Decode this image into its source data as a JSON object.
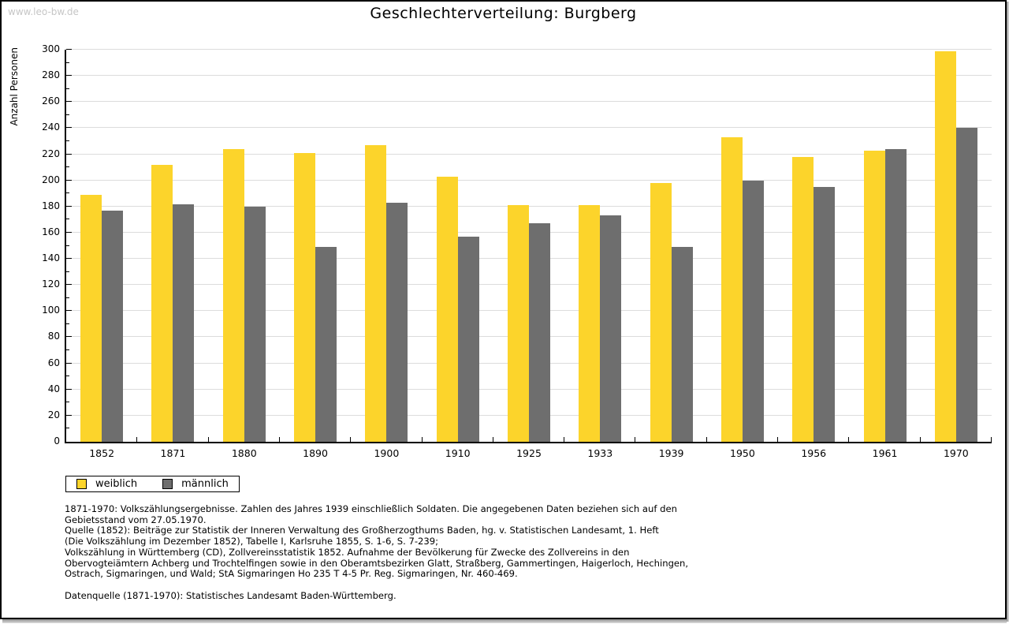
{
  "watermark": "www.leo-bw.de",
  "title": "Geschlechterverteilung: Burgberg",
  "chart_data": {
    "type": "bar",
    "title": "Geschlechterverteilung: Burgberg",
    "xlabel": "",
    "ylabel": "Anzahl Personen",
    "ylim": [
      0,
      300
    ],
    "ytick_step": 20,
    "yminor_step": 10,
    "grid": true,
    "legend_position": "bottom-left",
    "categories": [
      "1852",
      "1871",
      "1880",
      "1890",
      "1900",
      "1910",
      "1925",
      "1933",
      "1939",
      "1950",
      "1956",
      "1961",
      "1970"
    ],
    "series": [
      {
        "name": "weiblich",
        "color": "#fcd42b",
        "values": [
          189,
          212,
          224,
          221,
          227,
          203,
          181,
          181,
          198,
          233,
          218,
          223,
          299
        ]
      },
      {
        "name": "männlich",
        "color": "#6e6e6e",
        "values": [
          177,
          182,
          180,
          149,
          183,
          157,
          167,
          173,
          149,
          200,
          195,
          224,
          240
        ]
      }
    ],
    "colors": {
      "gridline": "#dcdcdc",
      "axis": "#000000"
    }
  },
  "legend": {
    "items": [
      {
        "label": "weiblich",
        "color": "#fcd42b"
      },
      {
        "label": "männlich",
        "color": "#6e6e6e"
      }
    ]
  },
  "footnotes": {
    "lines": [
      "1871-1970: Volkszählungsergebnisse. Zahlen des Jahres 1939 einschließlich Soldaten. Die angegebenen Daten beziehen sich auf den",
      "Gebietsstand vom 27.05.1970.",
      "Quelle (1852): Beiträge zur Statistik der Inneren Verwaltung des Großherzogthums Baden, hg. v. Statistischen Landesamt, 1. Heft",
      "(Die Volkszählung im Dezember 1852), Tabelle I, Karlsruhe 1855, S. 1-6, S. 7-239;",
      "Volkszählung in Württemberg (CD), Zollvereinsstatistik 1852. Aufnahme der Bevölkerung für Zwecke des Zollvereins in den",
      "Obervogteiämtern Achberg und Trochtelfingen sowie in den Oberamtsbezirken Glatt, Straßberg, Gammertingen, Haigerloch, Hechingen,",
      "Ostrach, Sigmaringen, und Wald; StA Sigmaringen Ho 235 T 4-5 Pr. Reg. Sigmaringen, Nr. 460-469."
    ],
    "datasource": "Datenquelle (1871-1970): Statistisches Landesamt Baden-Württemberg."
  }
}
